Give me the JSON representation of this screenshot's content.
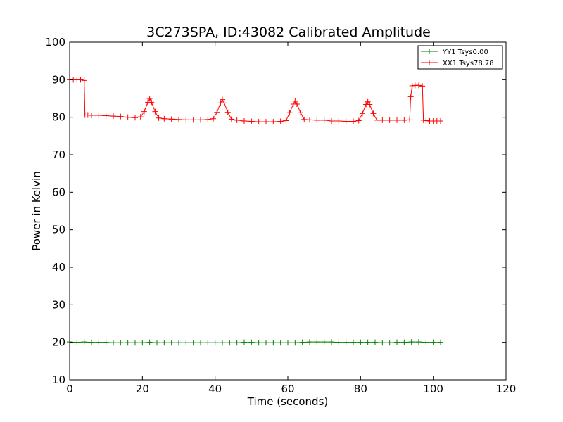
{
  "chart_data": {
    "type": "line",
    "title": "3C273SPA, ID:43082 Calibrated Amplitude",
    "xlabel": "Time (seconds)",
    "ylabel": "Power in Kelvin",
    "xlim": [
      0,
      120
    ],
    "ylim": [
      10,
      100
    ],
    "xticks": [
      "0",
      "20",
      "40",
      "60",
      "80",
      "100",
      "120"
    ],
    "yticks": [
      "10",
      "20",
      "30",
      "40",
      "50",
      "60",
      "70",
      "80",
      "90",
      "100"
    ],
    "grid": false,
    "legend_position": "top-right",
    "marker": "plus",
    "series": [
      {
        "name": "YY1 Tsys0.00",
        "color": "#008000",
        "x": [
          0,
          2,
          4,
          6,
          8,
          10,
          12,
          14,
          16,
          18,
          20,
          22,
          24,
          26,
          28,
          30,
          32,
          34,
          36,
          38,
          40,
          42,
          44,
          46,
          48,
          50,
          52,
          54,
          56,
          58,
          60,
          62,
          64,
          66,
          68,
          70,
          72,
          74,
          76,
          78,
          80,
          82,
          84,
          86,
          88,
          90,
          92,
          94,
          96,
          98,
          100,
          102
        ],
        "y": [
          20.1,
          20.0,
          20.1,
          20.0,
          20.0,
          20.0,
          19.9,
          19.9,
          19.9,
          19.9,
          19.9,
          20.0,
          19.9,
          19.9,
          19.9,
          19.9,
          19.9,
          19.9,
          19.9,
          19.9,
          19.9,
          19.9,
          19.9,
          19.9,
          20.0,
          20.0,
          19.9,
          19.9,
          19.9,
          19.9,
          19.9,
          19.9,
          20.0,
          20.1,
          20.1,
          20.1,
          20.1,
          20.0,
          20.0,
          20.0,
          20.0,
          20.0,
          20.0,
          19.9,
          19.9,
          20.0,
          20.0,
          20.1,
          20.1,
          20.0,
          20.0,
          20.0
        ]
      },
      {
        "name": "XX1 Tsys78.78",
        "color": "#ff0000",
        "x": [
          0,
          1,
          2,
          3,
          4,
          4.2,
          5,
          6,
          8,
          10,
          12,
          14,
          16,
          18,
          19.5,
          20.5,
          21.5,
          22,
          22.5,
          23.5,
          24.5,
          26,
          28,
          30,
          32,
          34,
          36,
          38,
          39.5,
          40.5,
          41.5,
          42,
          42.5,
          43.5,
          44.5,
          46,
          48,
          50,
          52,
          54,
          56,
          58,
          59.5,
          60.5,
          61.5,
          62,
          62.5,
          63.5,
          64.5,
          66,
          68,
          70,
          72,
          74,
          76,
          78,
          79.5,
          80.5,
          81.5,
          82,
          82.5,
          83.5,
          84.5,
          86,
          88,
          90,
          92,
          93.5,
          93.8,
          94.2,
          95,
          96,
          97,
          97.3,
          98,
          99,
          100,
          101,
          102
        ],
        "y": [
          90.0,
          90.0,
          90.0,
          90.0,
          89.8,
          80.6,
          80.6,
          80.5,
          80.5,
          80.4,
          80.3,
          80.2,
          80.0,
          79.9,
          80.1,
          81.5,
          84.0,
          85.0,
          84.0,
          81.5,
          79.8,
          79.6,
          79.5,
          79.4,
          79.3,
          79.3,
          79.3,
          79.4,
          79.6,
          81.3,
          83.8,
          84.7,
          83.8,
          81.3,
          79.5,
          79.2,
          79.0,
          78.9,
          78.8,
          78.8,
          78.8,
          78.9,
          79.1,
          81.2,
          83.5,
          84.3,
          83.5,
          81.2,
          79.4,
          79.3,
          79.2,
          79.2,
          79.0,
          79.0,
          78.9,
          78.9,
          79.1,
          81.0,
          83.4,
          84.1,
          83.4,
          81.0,
          79.2,
          79.2,
          79.2,
          79.2,
          79.2,
          79.3,
          85.5,
          88.4,
          88.5,
          88.5,
          88.3,
          79.2,
          79.1,
          79.0,
          79.0,
          79.0,
          79.0
        ]
      }
    ]
  }
}
